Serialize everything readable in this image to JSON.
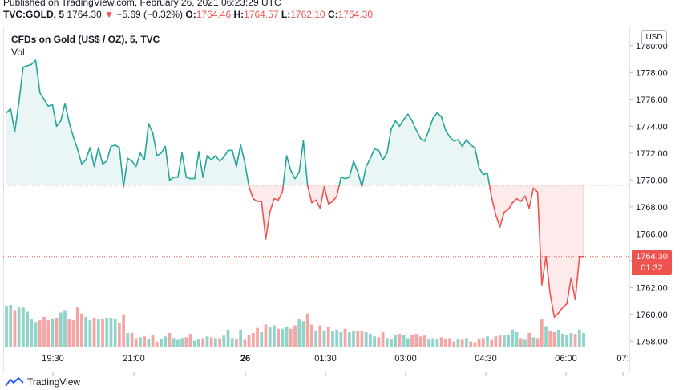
{
  "header": {
    "published": "Published on TradingView.com, February 26, 2021 06:23:29 UTC",
    "symbol": "TVC:GOLD, 5",
    "last": "1764.30",
    "change": "−5.69 (−0.32%)",
    "open_label": "O:",
    "open": "1764.46",
    "high_label": "H:",
    "high": "1764.57",
    "low_label": "L:",
    "low": "1762.10",
    "close_label": "C:",
    "close": "1764.30"
  },
  "legend": {
    "title": "CFDs on Gold (US$ / OZ), 5, TVC",
    "vol_label": "Vol"
  },
  "price_axis": {
    "currency": "USD",
    "last_price": "1764.30",
    "countdown": "01:32"
  },
  "footer": {
    "brand": "TradingView"
  },
  "colors": {
    "up": "#26a69a",
    "down": "#ef5350",
    "up_vol": "#8fd3c9",
    "down_vol": "#f4a6a5"
  },
  "chart_data": {
    "type": "area",
    "ylim": [
      1757.6,
      1781.0
    ],
    "y_ticks": [
      1758,
      1760,
      1762,
      1764,
      1766,
      1768,
      1770,
      1772,
      1774,
      1776,
      1778,
      1780
    ],
    "x_tick_labels": [
      "19:30",
      "21:00",
      "26",
      "01:30",
      "03:00",
      "04:30",
      "06:00",
      "07:"
    ],
    "baseline": 1769.6,
    "series": [
      {
        "values": [
          1775.0,
          1775.3,
          1773.6,
          1775.8,
          1778.4,
          1778.5,
          1778.6,
          1778.9,
          1776.5,
          1776.0,
          1775.5,
          1775.6,
          1774.0,
          1774.4,
          1775.7,
          1774.3,
          1773.2,
          1772.3,
          1771.2,
          1771.5,
          1772.4,
          1771.0,
          1772.4,
          1771.2,
          1771.4,
          1772.5,
          1772.6,
          1772.4,
          1769.5,
          1771.6,
          1771.4,
          1771.0,
          1772.0,
          1771.5,
          1774.2,
          1773.5,
          1771.8,
          1772.0,
          1772.5,
          1770.0,
          1770.2,
          1770.2,
          1772.0,
          1770.2,
          1770.1,
          1770.1,
          1772.1,
          1770.2,
          1771.8,
          1771.5,
          1771.8,
          1771.4,
          1771.7,
          1772.2,
          1772.2,
          1771.0,
          1772.6,
          1771.3,
          1769.5,
          1768.6,
          1768.4,
          1768.4,
          1765.6,
          1767.6,
          1768.6,
          1768.5,
          1769.1,
          1771.8,
          1770.7,
          1770.1,
          1770.6,
          1772.9,
          1769.6,
          1768.3,
          1768.5,
          1767.9,
          1769.5,
          1768.2,
          1768.4,
          1768.8,
          1770.2,
          1770.1,
          1770.2,
          1771.4,
          1770.6,
          1769.5,
          1771.0,
          1771.6,
          1772.3,
          1772.2,
          1771.5,
          1772.0,
          1773.8,
          1774.4,
          1774.0,
          1774.5,
          1774.9,
          1774.4,
          1773.7,
          1773.1,
          1772.9,
          1773.7,
          1774.6,
          1775.0,
          1774.7,
          1773.7,
          1773.2,
          1772.9,
          1773.0,
          1772.5,
          1773.0,
          1772.6,
          1772.4,
          1770.9,
          1770.4,
          1770.5,
          1768.7,
          1767.4,
          1766.5,
          1767.6,
          1767.8,
          1768.3,
          1768.6,
          1768.4,
          1768.8,
          1767.9,
          1769.4,
          1769.1,
          1762.2,
          1764.3,
          1761.5,
          1759.8,
          1760.1,
          1760.5,
          1760.8,
          1762.7,
          1761.1,
          1764.3,
          1764.3
        ]
      }
    ],
    "volume": [
      48,
      49,
      43,
      46,
      46,
      41,
      33,
      29,
      31,
      35,
      31,
      33,
      34,
      40,
      43,
      33,
      31,
      46,
      39,
      35,
      31,
      34,
      32,
      33,
      34,
      34,
      33,
      28,
      38,
      16,
      16,
      10,
      11,
      12,
      9,
      14,
      6,
      9,
      12,
      16,
      10,
      8,
      10,
      11,
      15,
      7,
      9,
      10,
      12,
      11,
      10,
      10,
      13,
      20,
      10,
      9,
      20,
      8,
      14,
      16,
      22,
      17,
      26,
      23,
      25,
      21,
      21,
      23,
      21,
      25,
      33,
      30,
      39,
      26,
      19,
      25,
      19,
      23,
      18,
      20,
      17,
      21,
      17,
      18,
      18,
      18,
      17,
      15,
      12,
      11,
      17,
      10,
      9,
      14,
      15,
      14,
      10,
      14,
      15,
      12,
      13,
      9,
      10,
      9,
      11,
      9,
      10,
      6,
      9,
      8,
      10,
      6,
      5,
      9,
      10,
      12,
      8,
      12,
      13,
      14,
      14,
      20,
      17,
      10,
      8,
      16,
      11,
      10,
      32,
      24,
      19,
      17,
      20,
      15,
      14,
      16,
      15,
      20,
      16
    ]
  }
}
